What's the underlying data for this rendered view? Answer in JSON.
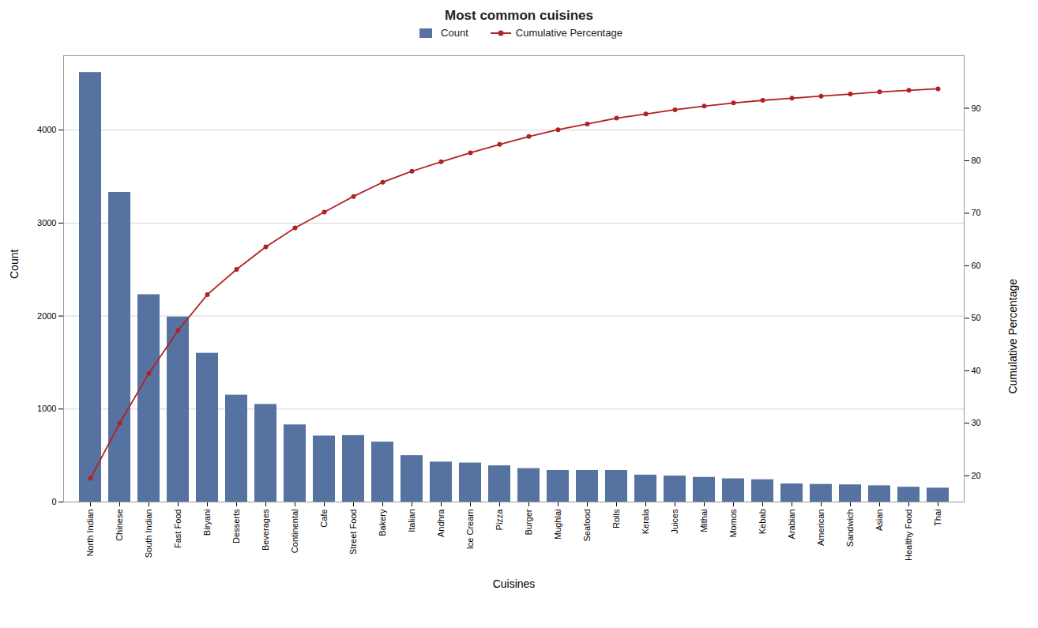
{
  "chart_data": {
    "type": "bar",
    "title": "Most common cuisines",
    "xlabel": "Cuisines",
    "ylabel": "Count",
    "y2label": "Cumulative Percentage",
    "categories": [
      "North Indian",
      "Chinese",
      "South Indian",
      "Fast Food",
      "Biryani",
      "Desserts",
      "Beverages",
      "Continental",
      "Cafe",
      "Street Food",
      "Bakery",
      "Italian",
      "Andhra",
      "Ice Cream",
      "Pizza",
      "Burger",
      "Mughlai",
      "Seafood",
      "Rolls",
      "Kerala",
      "Juices",
      "Mithai",
      "Momos",
      "Kebab",
      "Arabian",
      "American",
      "Sandwich",
      "Asian",
      "Healthy Food",
      "Thai"
    ],
    "series": [
      {
        "name": "Count",
        "type": "bar",
        "color": "#5572A0",
        "values": [
          4620,
          3330,
          2230,
          1990,
          1600,
          1150,
          1050,
          830,
          710,
          715,
          645,
          500,
          430,
          420,
          390,
          360,
          340,
          340,
          340,
          290,
          280,
          265,
          250,
          240,
          195,
          190,
          185,
          175,
          160,
          150
        ]
      },
      {
        "name": "Cumulative Percentage",
        "type": "line",
        "axis": "y2",
        "color": "#B22222",
        "marker": "circle",
        "values": [
          19.5,
          30.0,
          39.5,
          47.7,
          54.5,
          59.3,
          63.6,
          67.2,
          70.2,
          73.2,
          75.9,
          78.0,
          79.8,
          81.5,
          83.1,
          84.6,
          85.9,
          87.0,
          88.1,
          88.9,
          89.7,
          90.4,
          91.0,
          91.5,
          91.9,
          92.3,
          92.7,
          93.1,
          93.4,
          93.7
        ]
      }
    ],
    "ylim": [
      0,
      4800
    ],
    "yticks": [
      0,
      1000,
      2000,
      3000,
      4000
    ],
    "y2lim": [
      15,
      100
    ],
    "y2ticks": [
      20,
      30,
      40,
      50,
      60,
      70,
      80,
      90
    ],
    "grid": true,
    "legend": "top"
  }
}
